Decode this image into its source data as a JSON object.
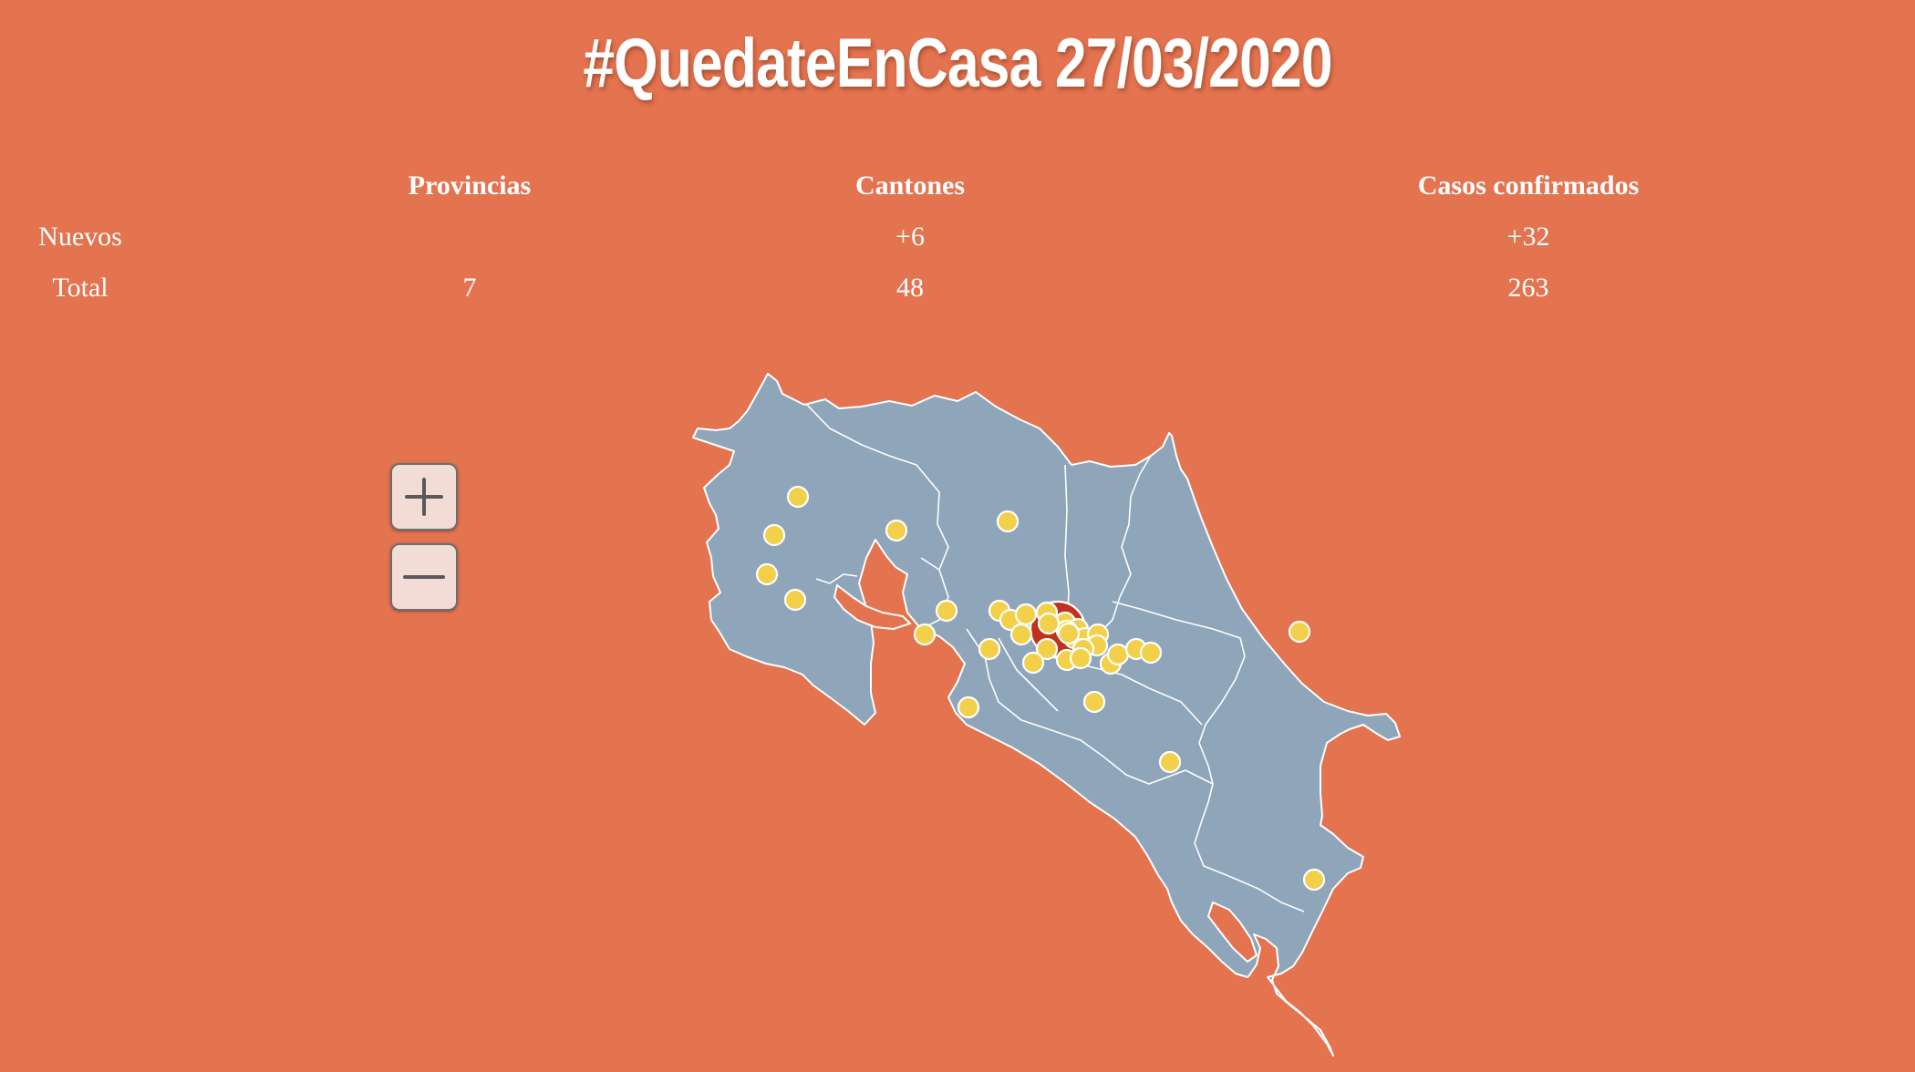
{
  "title": "#QuedateEnCasa 27/03/2020",
  "table": {
    "headers": [
      "",
      "Provincias",
      "Cantones",
      "Casos confirmados"
    ],
    "rows": [
      {
        "label": "Nuevos",
        "provincias": "",
        "cantones": "+6",
        "casos": "+32"
      },
      {
        "label": "Total",
        "provincias": "7",
        "cantones": "48",
        "casos": "263"
      }
    ]
  },
  "map": {
    "zoom_in_icon": "plus-icon",
    "zoom_out_icon": "minus-icon",
    "colors": {
      "background": "#E4734F",
      "land": "#8FA5B9",
      "marker": "#F2D04A",
      "hotspot": "#C0311E"
    }
  }
}
